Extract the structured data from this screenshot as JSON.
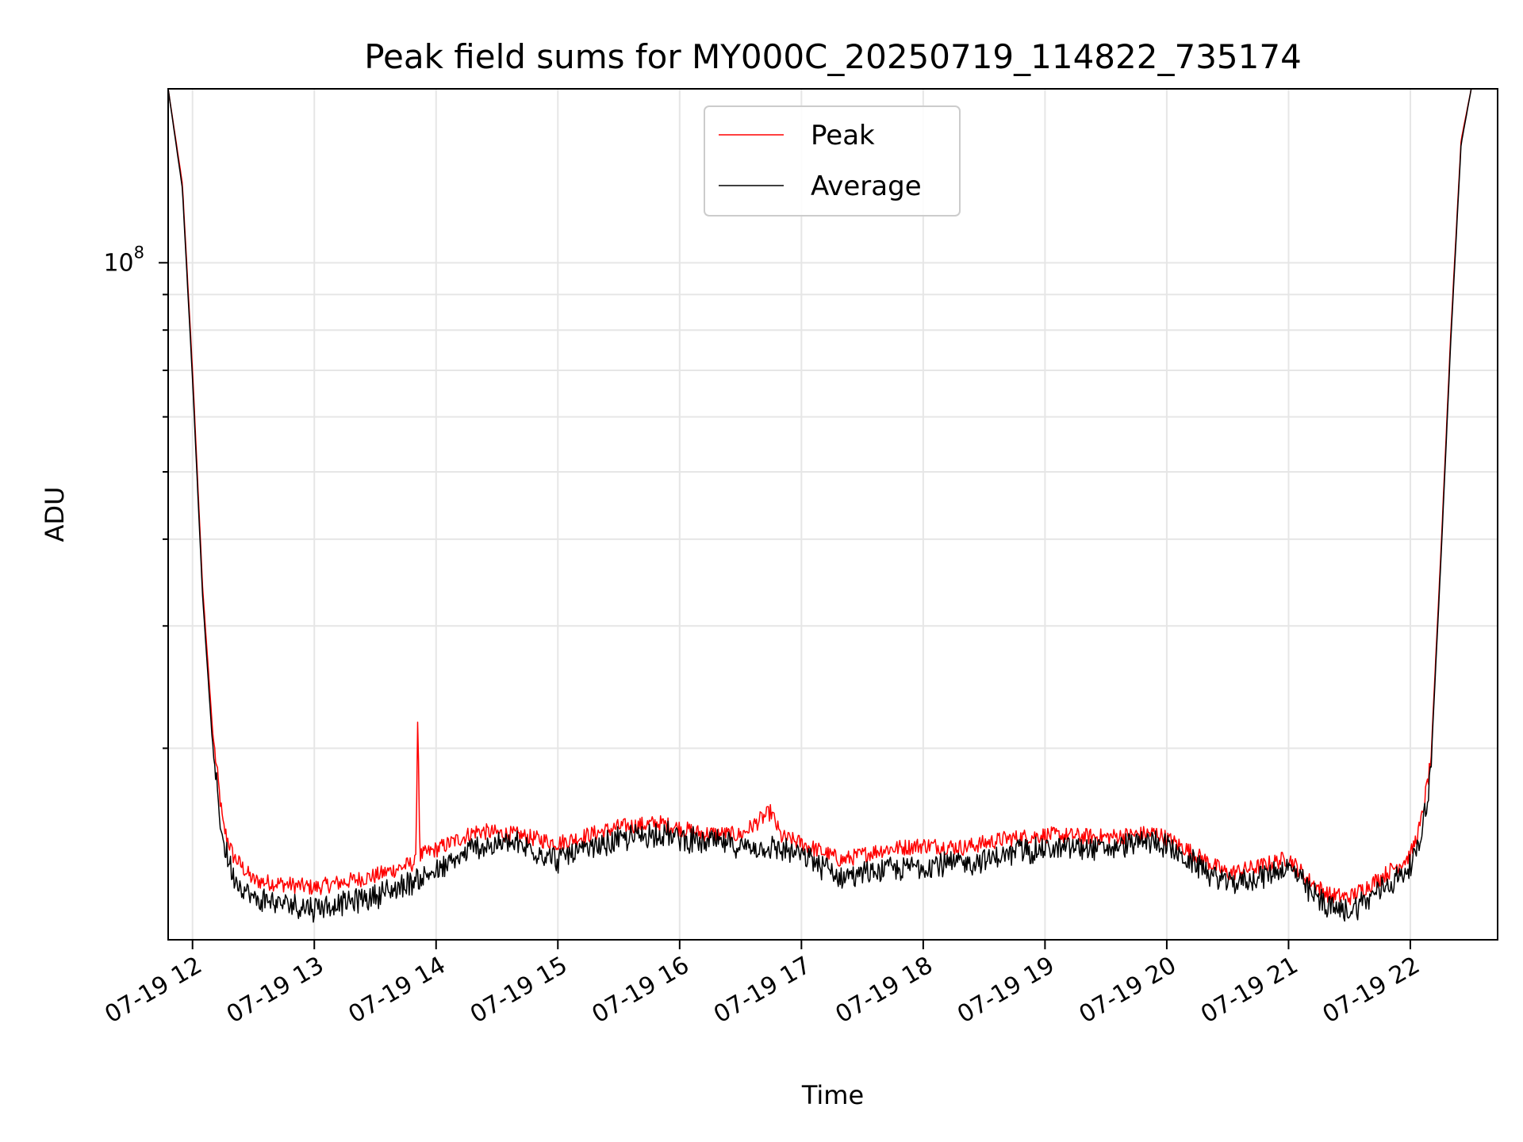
{
  "chart_data": {
    "type": "line",
    "title": "Peak field sums for MY000C_20250719_114822_735174",
    "xlabel": "Time",
    "ylabel": "ADU",
    "y_scale": "log",
    "x_ticks": [
      "07-19 12",
      "07-19 13",
      "07-19 14",
      "07-19 15",
      "07-19 16",
      "07-19 17",
      "07-19 18",
      "07-19 19",
      "07-19 20",
      "07-19 21",
      "07-19 22"
    ],
    "y_major_tick_label": {
      "value": 100000000,
      "label_base": "10",
      "label_exp": "8"
    },
    "xlim": [
      "2025-07-19 11:48",
      "2025-07-19 22:43"
    ],
    "ylim": [
      10600000,
      178000000
    ],
    "grid": true,
    "legend_position": "upper center",
    "colors": {
      "Peak": "#ff0000",
      "Average": "#000000"
    },
    "series": [
      {
        "name": "Peak",
        "x": [
          "2025-07-19 11:48",
          "2025-07-19 11:55",
          "2025-07-19 12:00",
          "2025-07-19 12:05",
          "2025-07-19 12:10",
          "2025-07-19 12:15",
          "2025-07-19 12:20",
          "2025-07-19 12:30",
          "2025-07-19 13:00",
          "2025-07-19 13:30",
          "2025-07-19 13:50",
          "2025-07-19 13:51",
          "2025-07-19 13:52",
          "2025-07-19 14:00",
          "2025-07-19 14:20",
          "2025-07-19 14:40",
          "2025-07-19 15:00",
          "2025-07-19 15:30",
          "2025-07-19 15:50",
          "2025-07-19 16:10",
          "2025-07-19 16:30",
          "2025-07-19 16:40",
          "2025-07-19 16:45",
          "2025-07-19 16:50",
          "2025-07-19 17:00",
          "2025-07-19 17:20",
          "2025-07-19 17:40",
          "2025-07-19 18:00",
          "2025-07-19 18:20",
          "2025-07-19 18:40",
          "2025-07-19 19:00",
          "2025-07-19 19:30",
          "2025-07-19 19:55",
          "2025-07-19 20:10",
          "2025-07-19 20:30",
          "2025-07-19 20:45",
          "2025-07-19 21:00",
          "2025-07-19 21:10",
          "2025-07-19 21:20",
          "2025-07-19 21:30",
          "2025-07-19 21:45",
          "2025-07-19 22:00",
          "2025-07-19 22:05",
          "2025-07-19 22:10",
          "2025-07-19 22:15",
          "2025-07-19 22:20",
          "2025-07-19 22:25",
          "2025-07-19 22:30"
        ],
        "y": [
          178000000,
          130000000,
          70000000,
          34000000,
          21000000,
          15500000,
          14000000,
          12900000,
          12600000,
          13100000,
          13700000,
          23000000,
          14000000,
          14300000,
          15200000,
          15000000,
          14600000,
          15400000,
          15600000,
          15100000,
          15000000,
          15800000,
          16200000,
          14900000,
          14600000,
          13800000,
          14300000,
          14500000,
          14400000,
          14800000,
          15000000,
          14900000,
          15100000,
          14300000,
          13200000,
          13500000,
          13900000,
          12900000,
          12300000,
          12200000,
          13000000,
          14000000,
          15500000,
          19000000,
          38000000,
          80000000,
          150000000,
          178000000
        ]
      },
      {
        "name": "Average",
        "x": [
          "2025-07-19 11:48",
          "2025-07-19 11:55",
          "2025-07-19 12:00",
          "2025-07-19 12:05",
          "2025-07-19 12:10",
          "2025-07-19 12:15",
          "2025-07-19 12:20",
          "2025-07-19 12:30",
          "2025-07-19 13:00",
          "2025-07-19 13:30",
          "2025-07-19 14:00",
          "2025-07-19 14:20",
          "2025-07-19 14:40",
          "2025-07-19 15:00",
          "2025-07-19 15:30",
          "2025-07-19 15:50",
          "2025-07-19 16:10",
          "2025-07-19 16:30",
          "2025-07-19 16:50",
          "2025-07-19 17:00",
          "2025-07-19 17:20",
          "2025-07-19 17:40",
          "2025-07-19 18:00",
          "2025-07-19 18:20",
          "2025-07-19 18:40",
          "2025-07-19 19:00",
          "2025-07-19 19:30",
          "2025-07-19 19:55",
          "2025-07-19 20:10",
          "2025-07-19 20:30",
          "2025-07-19 20:45",
          "2025-07-19 21:00",
          "2025-07-19 21:10",
          "2025-07-19 21:20",
          "2025-07-19 21:30",
          "2025-07-19 21:45",
          "2025-07-19 22:00",
          "2025-07-19 22:05",
          "2025-07-19 22:10",
          "2025-07-19 22:15",
          "2025-07-19 22:20",
          "2025-07-19 22:25",
          "2025-07-19 22:30"
        ],
        "y": [
          178000000,
          128000000,
          68000000,
          33000000,
          20000000,
          14800000,
          13300000,
          12300000,
          11900000,
          12400000,
          13400000,
          14600000,
          14700000,
          14000000,
          14900000,
          15300000,
          14800000,
          14700000,
          14500000,
          14200000,
          13200000,
          13500000,
          13700000,
          13800000,
          14200000,
          14500000,
          14500000,
          14900000,
          14000000,
          12900000,
          13200000,
          13700000,
          12600000,
          11900000,
          11800000,
          12600000,
          13600000,
          15000000,
          18500000,
          37000000,
          78000000,
          148000000,
          178000000
        ]
      }
    ]
  }
}
